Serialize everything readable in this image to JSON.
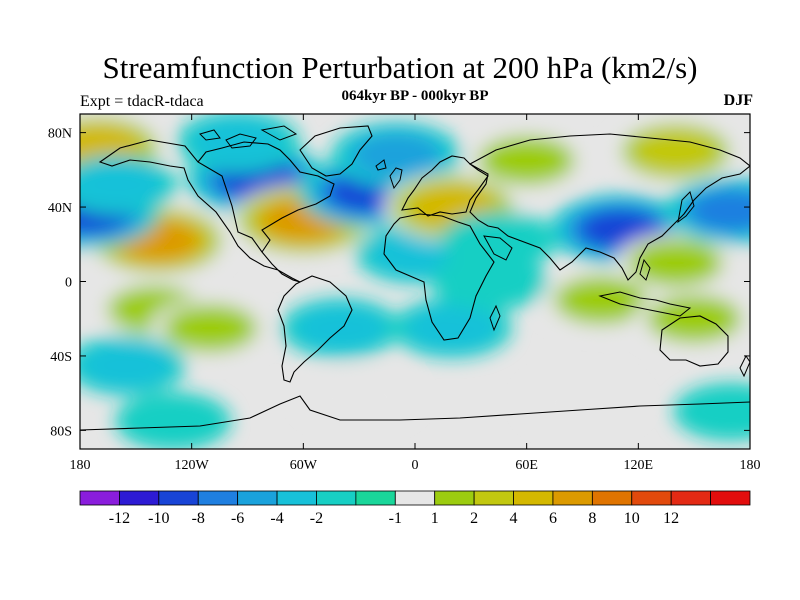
{
  "header": {
    "title": "Streamfunction Perturbation at 200 hPa (km2/s)",
    "subtitle": "064kyr BP - 000kyr BP",
    "left_label": "Expt = tdacR-tdaca",
    "right_label": "DJF"
  },
  "map": {
    "lon_range": [
      -180,
      180
    ],
    "lat_range": [
      -90,
      90
    ],
    "projection": "cylindrical-equidistant",
    "x_ticks": [
      {
        "value": -180,
        "label": "180"
      },
      {
        "value": -120,
        "label": "120W"
      },
      {
        "value": -60,
        "label": "60W"
      },
      {
        "value": 0,
        "label": "0"
      },
      {
        "value": 60,
        "label": "60E"
      },
      {
        "value": 120,
        "label": "120E"
      },
      {
        "value": 180,
        "label": "180"
      }
    ],
    "y_ticks": [
      {
        "value": 80,
        "label": "80N"
      },
      {
        "value": 40,
        "label": "40N"
      },
      {
        "value": 0,
        "label": "0"
      },
      {
        "value": -40,
        "label": "40S"
      },
      {
        "value": -80,
        "label": "80S"
      }
    ],
    "field_features": [
      {
        "lon": -170,
        "lat": 72,
        "value": 7,
        "kind": "high"
      },
      {
        "lon": -138,
        "lat": 22,
        "value": 9,
        "kind": "high"
      },
      {
        "lon": -175,
        "lat": 37,
        "value": -9,
        "kind": "low"
      },
      {
        "lon": -160,
        "lat": 52,
        "value": -3,
        "kind": "low"
      },
      {
        "lon": -85,
        "lat": 55,
        "value": -9,
        "kind": "low"
      },
      {
        "lon": -95,
        "lat": 75,
        "value": -4,
        "kind": "low"
      },
      {
        "lon": -60,
        "lat": 33,
        "value": 10,
        "kind": "high"
      },
      {
        "lon": -25,
        "lat": 48,
        "value": -9,
        "kind": "low"
      },
      {
        "lon": -10,
        "lat": 68,
        "value": -6,
        "kind": "low"
      },
      {
        "lon": 0,
        "lat": 15,
        "value": -3,
        "kind": "low"
      },
      {
        "lon": 20,
        "lat": 40,
        "value": 8,
        "kind": "high"
      },
      {
        "lon": 60,
        "lat": 65,
        "value": 4,
        "kind": "high"
      },
      {
        "lon": 140,
        "lat": 70,
        "value": 5,
        "kind": "high"
      },
      {
        "lon": 110,
        "lat": 28,
        "value": -9,
        "kind": "low"
      },
      {
        "lon": 45,
        "lat": 22,
        "value": -2,
        "kind": "low"
      },
      {
        "lon": 140,
        "lat": 10,
        "value": 3,
        "kind": "high"
      },
      {
        "lon": 170,
        "lat": 38,
        "value": -7,
        "kind": "low"
      },
      {
        "lon": -140,
        "lat": -15,
        "value": 3,
        "kind": "high"
      },
      {
        "lon": -110,
        "lat": -25,
        "value": 3,
        "kind": "high"
      },
      {
        "lon": -155,
        "lat": -45,
        "value": -3,
        "kind": "low"
      },
      {
        "lon": -40,
        "lat": -25,
        "value": -3,
        "kind": "low"
      },
      {
        "lon": 20,
        "lat": -25,
        "value": -3,
        "kind": "low"
      },
      {
        "lon": 40,
        "lat": 0,
        "value": -2,
        "kind": "low"
      },
      {
        "lon": 100,
        "lat": -10,
        "value": 3,
        "kind": "high"
      },
      {
        "lon": 150,
        "lat": -20,
        "value": 3,
        "kind": "high"
      },
      {
        "lon": -30,
        "lat": -62,
        "value": 2,
        "kind": "high"
      },
      {
        "lon": 90,
        "lat": -65,
        "value": 2,
        "kind": "high"
      },
      {
        "lon": -130,
        "lat": -75,
        "value": -2,
        "kind": "low"
      },
      {
        "lon": 170,
        "lat": -70,
        "value": -2,
        "kind": "low"
      }
    ]
  },
  "colorbar": {
    "colors": [
      "#8a1ddc",
      "#2d1bd4",
      "#1844d6",
      "#1f7fe0",
      "#1aa2dc",
      "#17c1d9",
      "#17cfc4",
      "#1ad69a",
      "#e6e6e6",
      "#9ccc0f",
      "#c2c810",
      "#d4b800",
      "#dc9a00",
      "#e07400",
      "#e24a0c",
      "#e32a14",
      "#e20d0d"
    ],
    "labels": [
      {
        "index": 1,
        "label": "-12"
      },
      {
        "index": 2,
        "label": "-10"
      },
      {
        "index": 3,
        "label": "-8"
      },
      {
        "index": 4,
        "label": "-6"
      },
      {
        "index": 5,
        "label": "-4"
      },
      {
        "index": 6,
        "label": "-2"
      },
      {
        "index": 8,
        "label": "-1"
      },
      {
        "index": 9,
        "label": "1"
      },
      {
        "index": 10,
        "label": "2"
      },
      {
        "index": 11,
        "label": "4"
      },
      {
        "index": 12,
        "label": "6"
      },
      {
        "index": 13,
        "label": "8"
      },
      {
        "index": 14,
        "label": "10"
      },
      {
        "index": 15,
        "label": "12"
      }
    ],
    "levels": [
      -12,
      -10,
      -8,
      -6,
      -4,
      -2,
      -1,
      1,
      2,
      4,
      6,
      8,
      10,
      12
    ]
  }
}
